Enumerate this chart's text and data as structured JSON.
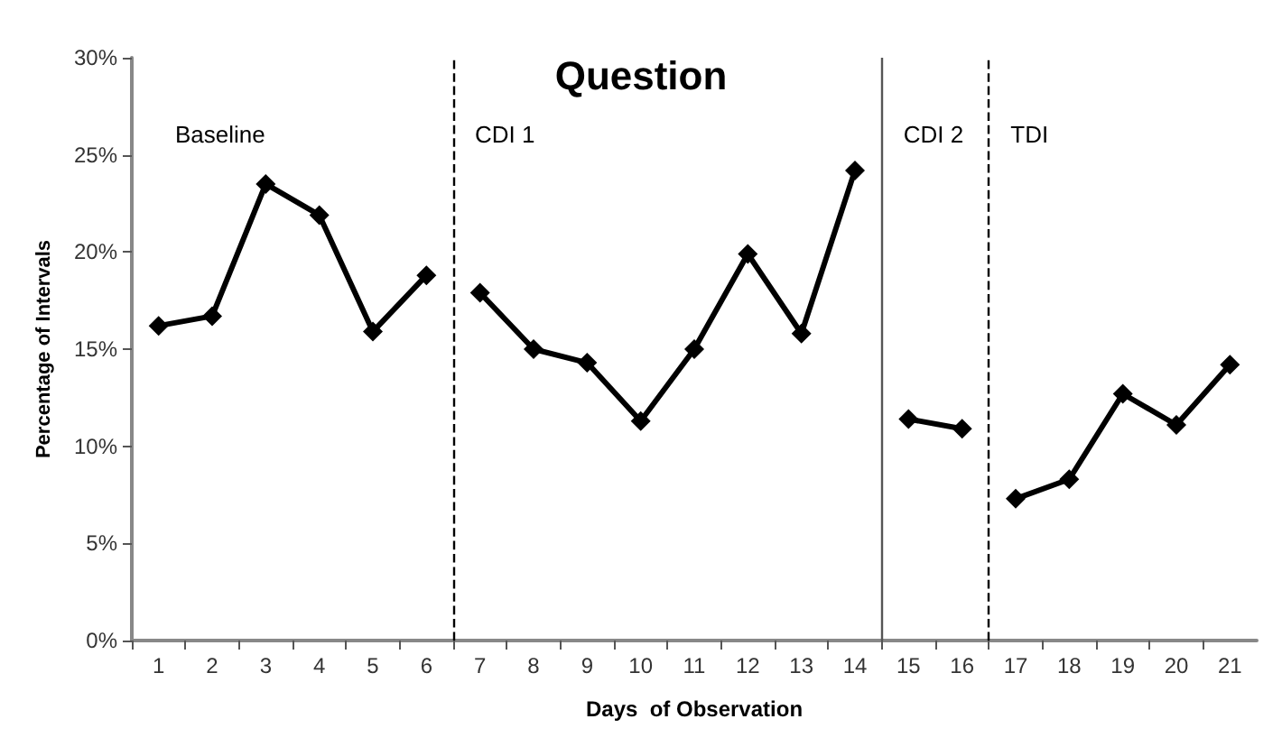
{
  "chart_data": {
    "type": "line",
    "title": "Question",
    "xlabel": "Days  of Observation",
    "ylabel": "Percentage of Intervals",
    "xlim": [
      0.5,
      21.5
    ],
    "xticks": [
      1,
      2,
      3,
      4,
      5,
      6,
      7,
      8,
      9,
      10,
      11,
      12,
      13,
      14,
      15,
      16,
      17,
      18,
      19,
      20,
      21
    ],
    "ylim": [
      0,
      30
    ],
    "yticks": [
      {
        "value": 0,
        "label": "0%"
      },
      {
        "value": 5,
        "label": "5%"
      },
      {
        "value": 10,
        "label": "10%"
      },
      {
        "value": 15,
        "label": "15%"
      },
      {
        "value": 20,
        "label": "20%"
      },
      {
        "value": 25,
        "label": "25%"
      },
      {
        "value": 30,
        "label": "30%"
      }
    ],
    "series": [
      {
        "color": "#000000",
        "x": [
          1,
          2,
          3,
          4,
          5,
          6
        ],
        "values": [
          16.2,
          16.7,
          23.5,
          21.9,
          15.9,
          18.8
        ]
      },
      {
        "color": "#000000",
        "x": [
          7,
          8,
          9,
          10,
          11,
          12,
          13,
          14
        ],
        "values": [
          17.9,
          15.0,
          14.3,
          11.3,
          15.0,
          19.9,
          15.8,
          24.2
        ]
      },
      {
        "color": "#000000",
        "x": [
          15,
          16
        ],
        "values": [
          11.4,
          10.9
        ]
      },
      {
        "color": "#000000",
        "x": [
          17,
          18,
          19,
          20,
          21
        ],
        "values": [
          7.3,
          8.3,
          12.7,
          11.1,
          14.2
        ]
      }
    ],
    "ref_lines": [
      {
        "axis": "x",
        "value": 6.5,
        "color": "#000000",
        "line_style": "dashed"
      },
      {
        "axis": "x",
        "value": 14.5,
        "color": "#555555",
        "line_style": "solid"
      },
      {
        "axis": "x",
        "value": 16.5,
        "color": "#000000",
        "line_style": "dashed"
      }
    ],
    "annotations": [
      "Baseline",
      "CDI 1",
      "CDI 2",
      "TDI"
    ],
    "grid": false,
    "marker": "diamond",
    "line_style": "solid"
  }
}
